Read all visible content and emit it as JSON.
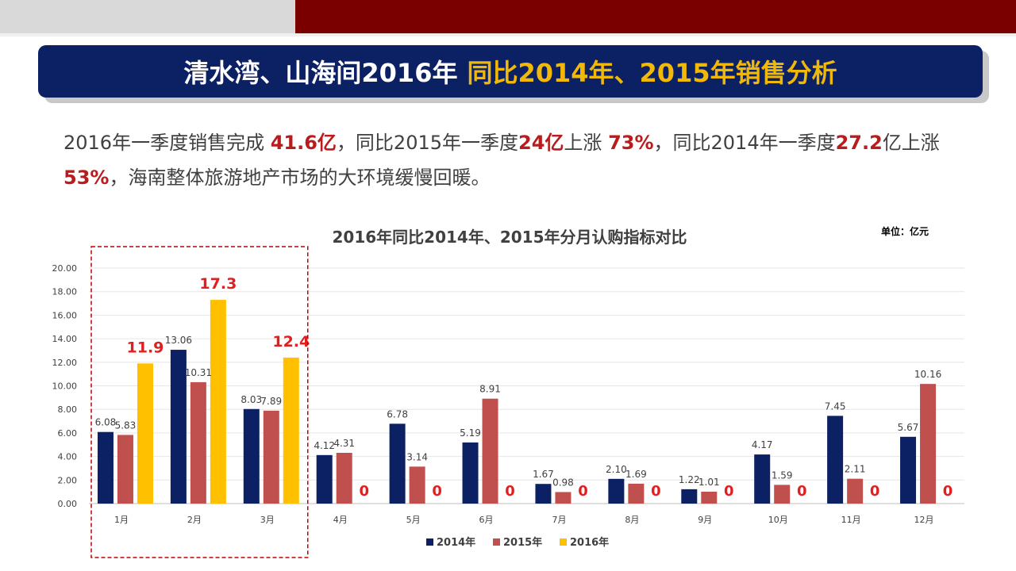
{
  "header": {
    "title_main": "清水湾、山海间2016年",
    "title_accent": "同比2014年、2015年销售分析"
  },
  "summary": {
    "t1": "2016年一季度销售完成 ",
    "v1": "41.6亿",
    "t2": "，同比2015年一季度",
    "v2": "24亿",
    "t3": "上涨 ",
    "v3": "73%",
    "t4": "，同比2014年一季度",
    "v4": "27.2",
    "t5": "亿上涨 ",
    "v5": "53%",
    "t6": "，海南整体旅游地产市场的大环境缓慢回暖。"
  },
  "colors": {
    "s2014": "#0b2163",
    "s2015": "#c0504d",
    "s2016": "#ffc000",
    "highlight_label": "#e02020",
    "box_border": "#c00000"
  },
  "chart_data": {
    "type": "bar",
    "title": "2016年同比2014年、2015年分月认购指标对比",
    "unit_label": "单位：亿元",
    "categories": [
      "1月",
      "2月",
      "3月",
      "4月",
      "5月",
      "6月",
      "7月",
      "8月",
      "9月",
      "10月",
      "11月",
      "12月"
    ],
    "series": [
      {
        "name": "2014年",
        "values": [
          6.08,
          13.06,
          8.03,
          4.12,
          6.78,
          5.19,
          1.67,
          2.1,
          1.22,
          4.17,
          7.45,
          5.67
        ],
        "labels": [
          "6.08",
          "13.06",
          "8.03",
          "4.12",
          "6.78",
          "5.19",
          "1.67",
          "2.10",
          "1.22",
          "4.17",
          "7.45",
          "5.67"
        ]
      },
      {
        "name": "2015年",
        "values": [
          5.83,
          10.31,
          7.89,
          4.31,
          3.14,
          8.91,
          0.98,
          1.69,
          1.01,
          1.59,
          2.11,
          10.16
        ],
        "labels": [
          "5.83",
          "10.31",
          "7.89",
          "4.31",
          "3.14",
          "8.91",
          "0.98",
          "1.69",
          "1.01",
          "1.59",
          "2.11",
          "10.16"
        ]
      },
      {
        "name": "2016年",
        "values": [
          11.9,
          17.3,
          12.4,
          0,
          0,
          0,
          0,
          0,
          0,
          0,
          0,
          0
        ],
        "labels": [
          "11.9",
          "17.3",
          "12.4",
          "0",
          "0",
          "0",
          "0",
          "0",
          "0",
          "0",
          "0",
          "0"
        ]
      }
    ],
    "ylim": [
      0,
      20
    ],
    "yticks": [
      "0.00",
      "2.00",
      "4.00",
      "6.00",
      "8.00",
      "10.00",
      "12.00",
      "14.00",
      "16.00",
      "18.00",
      "20.00"
    ],
    "grid": true,
    "legend_position": "bottom",
    "highlight_range": [
      "1月",
      "3月"
    ]
  }
}
